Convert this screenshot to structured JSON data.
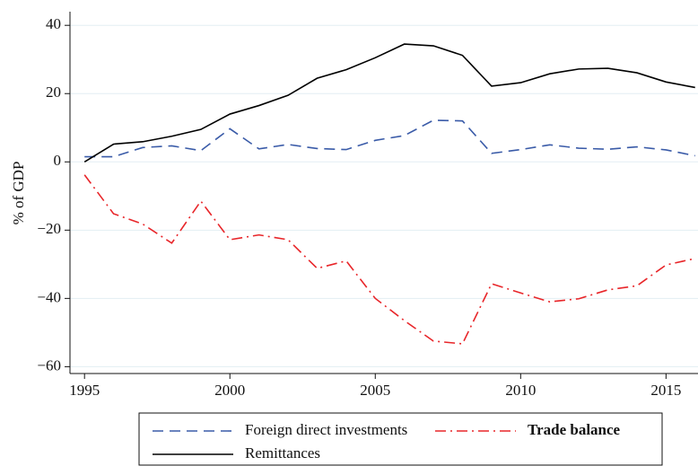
{
  "chart_data": {
    "type": "line",
    "y_label": "% of GDP",
    "x": [
      1995,
      1996,
      1997,
      1998,
      1999,
      2000,
      2001,
      2002,
      2003,
      2004,
      2005,
      2006,
      2007,
      2008,
      2009,
      2010,
      2011,
      2012,
      2013,
      2014,
      2015,
      2016
    ],
    "series": [
      {
        "name": "Foreign direct investments",
        "color": "#3a5ba8",
        "line_style": "dashed",
        "values": [
          1.5,
          1.5,
          4.2,
          4.7,
          3.3,
          9.7,
          3.8,
          5.1,
          3.9,
          3.6,
          6.3,
          7.7,
          12.2,
          12,
          2.5,
          3.6,
          5,
          4,
          3.7,
          4.4,
          3.5,
          1.8
        ]
      },
      {
        "name": "Trade balance",
        "color": "#e8262a",
        "line_style": "dashdot",
        "values": [
          -3.8,
          -15.2,
          -18.2,
          -23.8,
          -11.5,
          -22.8,
          -21.4,
          -22.8,
          -31.2,
          -29,
          -40,
          -46.5,
          -52.5,
          -53.3,
          -35.7,
          -38.4,
          -41,
          -40.1,
          -37.5,
          -36.3,
          -30.2,
          -28.3
        ]
      },
      {
        "name": "Remittances",
        "color": "#000000",
        "line_style": "solid",
        "values": [
          0,
          5.2,
          5.9,
          7.5,
          9.5,
          14,
          16.5,
          19.5,
          24.5,
          27,
          30.5,
          34.5,
          34,
          31.2,
          22.2,
          23.2,
          25.8,
          27.2,
          27.4,
          26.1,
          23.4,
          21.8
        ]
      }
    ],
    "xlim": [
      1994.5,
      2016.1
    ],
    "xticks": [
      1995,
      2000,
      2005,
      2010,
      2015
    ],
    "ylim": [
      -62,
      44
    ],
    "yticks": [
      {
        "value": -60,
        "label": "−60"
      },
      {
        "value": -40,
        "label": "−40"
      },
      {
        "value": -20,
        "label": "−20"
      },
      0,
      20,
      40
    ],
    "grid": true
  }
}
